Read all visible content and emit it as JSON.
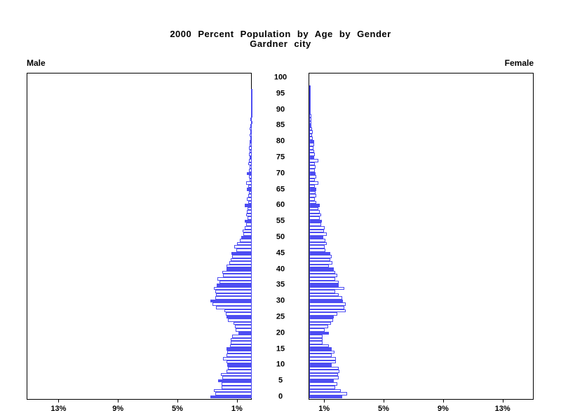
{
  "title": "2000 Percent Population by Age by Gender",
  "subtitle": "Gardner city",
  "left_panel_label": "Male",
  "right_panel_label": "Female",
  "colors": {
    "bar_outline": "#4d4df2",
    "bar_fill_highlight": "#4d4df2",
    "bar_fill_normal": "#ffffff",
    "axis": "#000000",
    "text": "#000000",
    "background": "#ffffff"
  },
  "chart_data": {
    "type": "bar",
    "variant": "population-pyramid",
    "title": "2000 Percent Population by Age by Gender",
    "subtitle": "Gardner city",
    "orientation": "horizontal-mirrored",
    "x_unit": "percent of population",
    "xlim_each_side": [
      0,
      15.2
    ],
    "x_tick_percents": [
      1,
      5,
      9,
      13
    ],
    "male_x_tick_labels": [
      "13%",
      "9%",
      "5%",
      "1%"
    ],
    "female_x_tick_labels": [
      "1%",
      "5%",
      "9%",
      "13%"
    ],
    "age_min": 0,
    "age_max": 100,
    "age_axis_tick_labels": [
      "0",
      "5",
      "10",
      "15",
      "20",
      "25",
      "30",
      "35",
      "40",
      "45",
      "50",
      "55",
      "60",
      "65",
      "70",
      "75",
      "80",
      "85",
      "90",
      "95",
      "100"
    ],
    "highlight_every_n_years": 5,
    "grid": false,
    "legend_position": "none",
    "series": [
      {
        "name": "Male",
        "side": "left",
        "ages": "0-100 single years, index = age",
        "values": [
          2.78,
          2.45,
          2.55,
          2.02,
          2.02,
          2.25,
          2.0,
          2.08,
          1.7,
          1.6,
          1.65,
          1.7,
          1.92,
          1.7,
          1.65,
          1.7,
          1.45,
          1.42,
          1.4,
          1.3,
          0.9,
          1.08,
          1.13,
          1.21,
          1.6,
          1.72,
          1.76,
          1.85,
          2.4,
          2.64,
          2.76,
          2.47,
          2.4,
          2.47,
          2.55,
          2.35,
          2.15,
          2.31,
          1.92,
          2.0,
          1.72,
          1.68,
          1.53,
          1.4,
          1.3,
          1.38,
          1.05,
          1.18,
          0.97,
          0.8,
          0.72,
          0.56,
          0.63,
          0.47,
          0.4,
          0.47,
          0.28,
          0.4,
          0.31,
          0.28,
          0.47,
          0.24,
          0.31,
          0.24,
          0.19,
          0.35,
          0.24,
          0.39,
          0.16,
          0.19,
          0.31,
          0.19,
          0.16,
          0.24,
          0.19,
          0.16,
          0.19,
          0.16,
          0.19,
          0.16,
          0.13,
          0.1,
          0.13,
          0.1,
          0.13,
          0.1,
          0.06,
          0.08,
          0.05,
          0.06,
          0.06,
          0.03,
          0.05,
          0.05,
          0.02,
          0.02,
          0.01,
          0,
          0,
          0,
          0
        ]
      },
      {
        "name": "Female",
        "side": "right",
        "ages": "0-100 single years, index = age",
        "values": [
          2.2,
          2.55,
          2.12,
          1.73,
          1.89,
          1.65,
          1.97,
          1.93,
          2.04,
          1.97,
          1.49,
          1.81,
          1.81,
          1.49,
          1.68,
          1.52,
          1.31,
          0.9,
          0.9,
          0.9,
          1.31,
          1.05,
          1.26,
          1.46,
          1.62,
          1.65,
          1.89,
          2.44,
          2.36,
          2.44,
          2.28,
          2.2,
          1.97,
          1.73,
          2.36,
          1.97,
          1.97,
          1.73,
          1.89,
          1.73,
          1.65,
          1.34,
          1.57,
          1.42,
          1.5,
          1.42,
          1.1,
          1.02,
          1.18,
          1.1,
          0.94,
          1.18,
          1.0,
          1.02,
          0.79,
          0.86,
          0.71,
          0.79,
          0.71,
          0.6,
          0.71,
          0.47,
          0.39,
          0.47,
          0.44,
          0.47,
          0.39,
          0.6,
          0.39,
          0.47,
          0.44,
          0.39,
          0.44,
          0.39,
          0.63,
          0.35,
          0.39,
          0.31,
          0.28,
          0.31,
          0.31,
          0.24,
          0.2,
          0.24,
          0.2,
          0.16,
          0.16,
          0.13,
          0.13,
          0.1,
          0.1,
          0.06,
          0.05,
          0.08,
          0.03,
          0.03,
          0.02,
          0.01,
          0,
          0,
          0
        ]
      }
    ]
  }
}
